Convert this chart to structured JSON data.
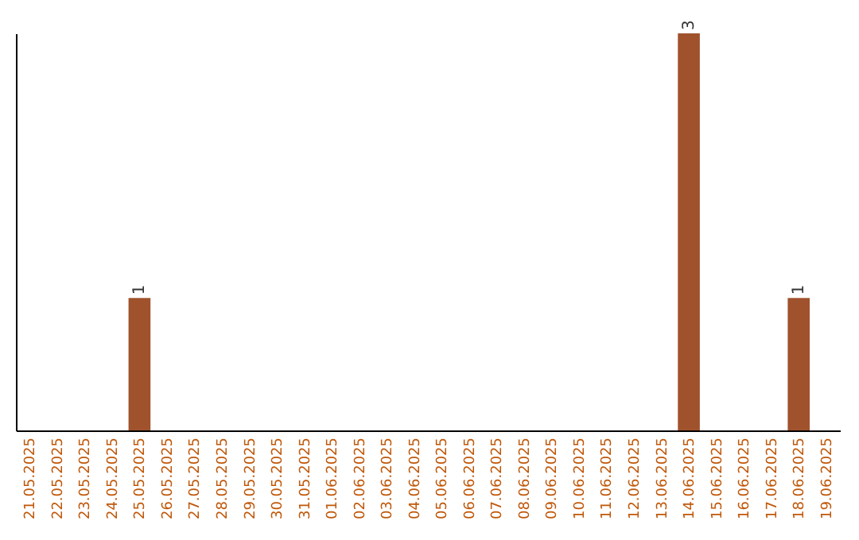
{
  "chart_data": {
    "type": "bar",
    "categories": [
      "21.05.2025",
      "22.05.2025",
      "23.05.2025",
      "24.05.2025",
      "25.05.2025",
      "26.05.2025",
      "27.05.2025",
      "28.05.2025",
      "29.05.2025",
      "30.05.2025",
      "31.05.2025",
      "01.06.2025",
      "02.06.2025",
      "03.06.2025",
      "04.06.2025",
      "05.06.2025",
      "06.06.2025",
      "07.06.2025",
      "08.06.2025",
      "09.06.2025",
      "10.06.2025",
      "11.06.2025",
      "12.06.2025",
      "13.06.2025",
      "14.06.2025",
      "15.06.2025",
      "16.06.2025",
      "17.06.2025",
      "18.06.2025",
      "19.06.2025"
    ],
    "values": [
      0,
      0,
      0,
      0,
      1,
      0,
      0,
      0,
      0,
      0,
      0,
      0,
      0,
      0,
      0,
      0,
      0,
      0,
      0,
      0,
      0,
      0,
      0,
      0,
      3,
      0,
      0,
      0,
      1,
      0
    ],
    "color": "#a0522d",
    "value_labels": [
      null,
      null,
      null,
      null,
      "1",
      null,
      null,
      null,
      null,
      null,
      null,
      null,
      null,
      null,
      null,
      null,
      null,
      null,
      null,
      null,
      null,
      null,
      null,
      null,
      "3",
      null,
      null,
      null,
      "1",
      null
    ]
  }
}
